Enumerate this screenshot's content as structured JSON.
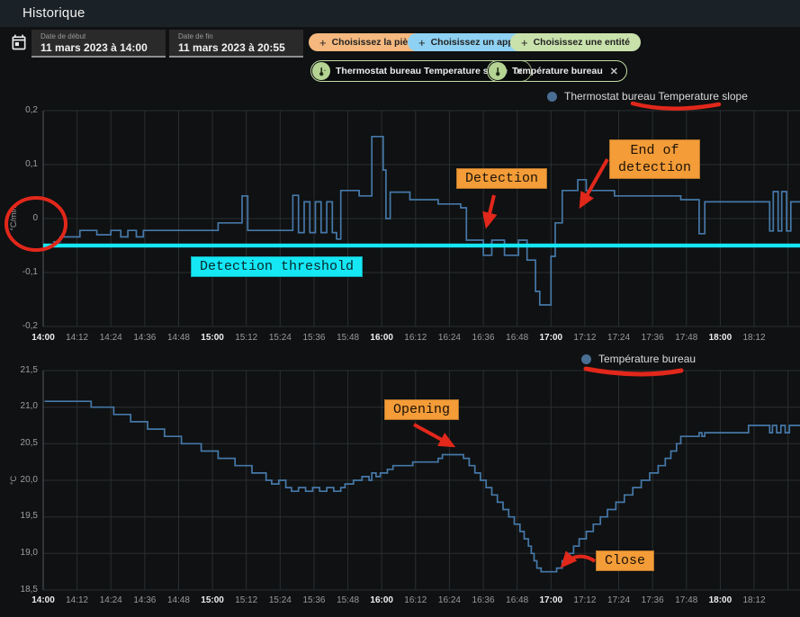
{
  "appbar": {
    "title": "Historique"
  },
  "icons": {
    "plus": "+",
    "close": "✕"
  },
  "toolbar": {
    "date_start": {
      "label": "Date de début",
      "value": "11 mars 2023 à 14:00"
    },
    "date_end": {
      "label": "Date de fin",
      "value": "11 mars 2023 à 20:55"
    },
    "filters": [
      {
        "label": "Choisissez la pièce",
        "color": "#f5b87e"
      },
      {
        "label": "Choisissez un appareil",
        "color": "#8ed1f2"
      },
      {
        "label": "Choisissez une entité",
        "color": "#c9e2ac"
      }
    ],
    "chips": [
      {
        "label": "Thermostat bureau Temperature slope"
      },
      {
        "label": "Température bureau"
      }
    ]
  },
  "colors": {
    "orange": "#f39c38",
    "cyan": "#15e7f5",
    "red": "#e2271b",
    "line_blue": "#4678a8",
    "dot_blue": "#4a6d92",
    "pill_orange": "#f5b87e",
    "pill_blue": "#8ed1f2",
    "pill_green": "#c9e2ac",
    "chip_border": "#c2dda4",
    "chip_icon": "#b5d494"
  },
  "annotations": {
    "top_chart": [
      {
        "label": "Detection"
      },
      {
        "line1": "End of",
        "line2": "detection"
      },
      {
        "label": "Detection threshold"
      }
    ],
    "bottom_chart": [
      {
        "label": "Opening"
      },
      {
        "label": "Close"
      }
    ]
  },
  "chart_data": [
    {
      "type": "line",
      "step": true,
      "legend": "Thermostat bureau Temperature slope",
      "ylabel": "°C/min",
      "ylim": [
        -0.2,
        0.2
      ],
      "yticks": [
        0.2,
        0.1,
        0,
        -0.1,
        -0.2
      ],
      "ytick_labels": [
        "0,2",
        "0,1",
        "0",
        "-0,1",
        "-0,2"
      ],
      "x_tick_interval_min": 12,
      "x_tick_labels": [
        "14:00",
        "14:12",
        "14:24",
        "14:36",
        "14:48",
        "15:00",
        "15:12",
        "15:24",
        "15:36",
        "15:48",
        "16:00",
        "16:12",
        "16:24",
        "16:36",
        "16:48",
        "17:00",
        "17:12",
        "17:24",
        "17:36",
        "17:48",
        "18:00",
        "18:12"
      ],
      "threshold": {
        "value": -0.05,
        "label": "Detection threshold"
      },
      "series": [
        {
          "name": "Thermostat bureau Temperature slope",
          "points_min_after_1400_vs_value": [
            [
              3.5,
              -0.043
            ],
            [
              6,
              -0.034
            ],
            [
              13,
              -0.022
            ],
            [
              19,
              -0.03
            ],
            [
              24,
              -0.022
            ],
            [
              27.5,
              -0.034
            ],
            [
              30,
              -0.022
            ],
            [
              33,
              -0.034
            ],
            [
              35.5,
              -0.022
            ],
            [
              62,
              -0.008
            ],
            [
              70.5,
              0.042
            ],
            [
              72.5,
              -0.022
            ],
            [
              88.5,
              0.043
            ],
            [
              90.5,
              -0.026
            ],
            [
              92.5,
              0.031
            ],
            [
              94.5,
              -0.026
            ],
            [
              96.5,
              0.031
            ],
            [
              98.5,
              -0.026
            ],
            [
              100.5,
              0.031
            ],
            [
              102.5,
              -0.026
            ],
            [
              104,
              -0.038
            ],
            [
              105.5,
              0.052
            ],
            [
              112,
              0.042
            ],
            [
              116.5,
              0.152
            ],
            [
              120.5,
              0.09
            ],
            [
              121.5,
              0
            ],
            [
              123,
              0.049
            ],
            [
              130,
              0.035
            ],
            [
              140,
              0.027
            ],
            [
              148,
              0.02
            ],
            [
              150,
              -0.04
            ],
            [
              156,
              -0.068
            ],
            [
              159,
              -0.04
            ],
            [
              163.5,
              -0.068
            ],
            [
              168.5,
              -0.04
            ],
            [
              171.5,
              -0.077
            ],
            [
              174.5,
              -0.135
            ],
            [
              176,
              -0.16
            ],
            [
              180,
              -0.07
            ],
            [
              181.5,
              -0.008
            ],
            [
              184,
              0.052
            ],
            [
              189.5,
              0.072
            ],
            [
              192.5,
              0.052
            ],
            [
              202.5,
              0.042
            ],
            [
              226,
              0.035
            ],
            [
              232.5,
              -0.028
            ],
            [
              234.5,
              0.031
            ],
            [
              257.5,
              -0.023
            ],
            [
              258.8,
              0.05
            ],
            [
              260.5,
              -0.023
            ],
            [
              261.8,
              0.05
            ],
            [
              263.5,
              -0.023
            ],
            [
              265,
              0.031
            ]
          ]
        }
      ]
    },
    {
      "type": "line",
      "step": true,
      "legend": "Température bureau",
      "ylabel": "°C",
      "ylim": [
        18.5,
        21.5
      ],
      "yticks": [
        21.5,
        21.0,
        20.5,
        20.0,
        19.5,
        19.0,
        18.5
      ],
      "ytick_labels": [
        "21,5",
        "21,0",
        "20,5",
        "20,0",
        "19,5",
        "19,0",
        "18,5"
      ],
      "x_tick_interval_min": 12,
      "x_tick_labels": [
        "14:00",
        "14:12",
        "14:24",
        "14:36",
        "14:48",
        "15:00",
        "15:12",
        "15:24",
        "15:36",
        "15:48",
        "16:00",
        "16:12",
        "16:24",
        "16:36",
        "16:48",
        "17:00",
        "17:12",
        "17:24",
        "17:36",
        "17:48",
        "18:00",
        "18:12"
      ],
      "series": [
        {
          "name": "Température bureau",
          "points_min_after_1400_vs_value": [
            [
              0.5,
              21.08
            ],
            [
              17,
              21.0
            ],
            [
              25,
              20.9
            ],
            [
              31,
              20.8
            ],
            [
              37,
              20.7
            ],
            [
              43,
              20.6
            ],
            [
              49,
              20.5
            ],
            [
              56,
              20.4
            ],
            [
              62,
              20.3
            ],
            [
              68,
              20.2
            ],
            [
              74,
              20.1
            ],
            [
              79,
              20.0
            ],
            [
              81,
              19.95
            ],
            [
              83.5,
              20.0
            ],
            [
              86,
              19.9
            ],
            [
              88,
              19.85
            ],
            [
              90.5,
              19.9
            ],
            [
              93,
              19.85
            ],
            [
              95.5,
              19.9
            ],
            [
              98,
              19.85
            ],
            [
              100.5,
              19.9
            ],
            [
              103,
              19.85
            ],
            [
              105.5,
              19.9
            ],
            [
              107,
              19.95
            ],
            [
              110,
              20.0
            ],
            [
              113,
              20.05
            ],
            [
              115.5,
              20.0
            ],
            [
              116.5,
              20.1
            ],
            [
              118,
              20.05
            ],
            [
              119.5,
              20.1
            ],
            [
              122,
              20.15
            ],
            [
              124,
              20.2
            ],
            [
              131,
              20.25
            ],
            [
              140,
              20.3
            ],
            [
              141.5,
              20.35
            ],
            [
              149,
              20.3
            ],
            [
              151,
              20.2
            ],
            [
              153,
              20.1
            ],
            [
              155,
              20.0
            ],
            [
              157,
              19.9
            ],
            [
              159,
              19.8
            ],
            [
              161,
              19.7
            ],
            [
              163,
              19.6
            ],
            [
              165,
              19.5
            ],
            [
              167,
              19.4
            ],
            [
              169,
              19.3
            ],
            [
              170.5,
              19.2
            ],
            [
              172,
              19.1
            ],
            [
              173,
              19.0
            ],
            [
              174,
              18.9
            ],
            [
              175,
              18.8
            ],
            [
              176.5,
              18.75
            ],
            [
              182,
              18.8
            ],
            [
              184,
              18.9
            ],
            [
              186,
              19.0
            ],
            [
              188,
              19.1
            ],
            [
              190,
              19.2
            ],
            [
              192.5,
              19.3
            ],
            [
              195,
              19.4
            ],
            [
              197.5,
              19.5
            ],
            [
              200,
              19.6
            ],
            [
              203,
              19.7
            ],
            [
              206,
              19.8
            ],
            [
              209,
              19.9
            ],
            [
              212,
              20.0
            ],
            [
              215,
              20.1
            ],
            [
              218,
              20.2
            ],
            [
              220.5,
              20.3
            ],
            [
              222.5,
              20.4
            ],
            [
              224.5,
              20.5
            ],
            [
              226,
              20.6
            ],
            [
              232.5,
              20.65
            ],
            [
              233.5,
              20.6
            ],
            [
              234.5,
              20.65
            ],
            [
              250,
              20.75
            ],
            [
              257.5,
              20.65
            ],
            [
              258.5,
              20.75
            ],
            [
              260,
              20.65
            ],
            [
              261.5,
              20.75
            ],
            [
              263,
              20.65
            ],
            [
              264.5,
              20.75
            ]
          ]
        }
      ]
    }
  ]
}
